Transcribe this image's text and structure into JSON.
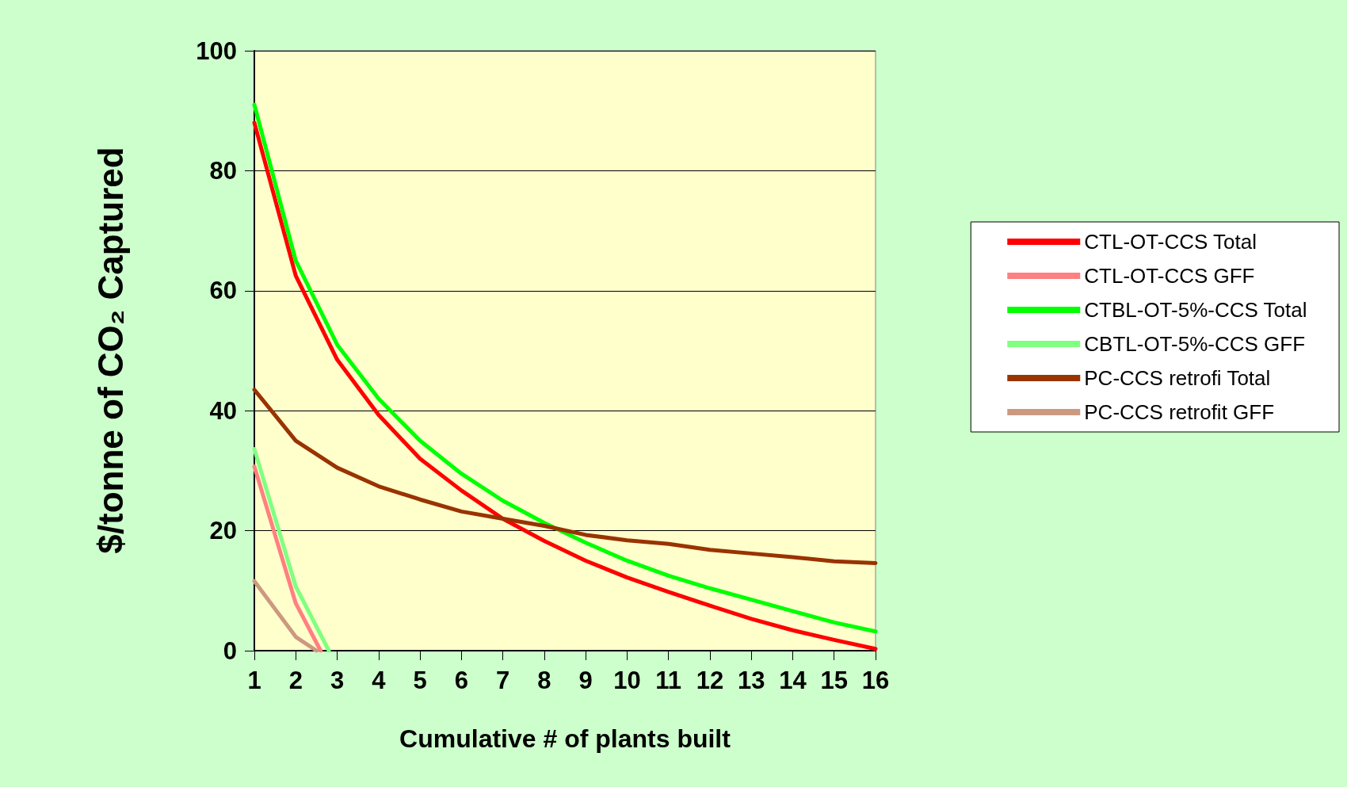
{
  "chart_data": {
    "type": "line",
    "xlabel": "Cumulative # of plants built",
    "ylabel": "$/tonne of CO₂ Captured",
    "xlim": [
      1,
      16
    ],
    "xticks": [
      1,
      2,
      3,
      4,
      5,
      6,
      7,
      8,
      9,
      10,
      11,
      12,
      13,
      14,
      15,
      16
    ],
    "ylim": [
      0,
      100
    ],
    "yticks": [
      0,
      20,
      40,
      60,
      80,
      100
    ],
    "grid": "y",
    "legend": "right",
    "marker": "none",
    "line_style": "solid",
    "series": [
      {
        "name": "CTL-OT-CCS Total",
        "color": "#ff0000",
        "x": [
          1,
          2,
          3,
          4,
          5,
          6,
          7,
          8,
          9,
          10,
          11,
          12,
          13,
          14,
          15,
          16
        ],
        "values": [
          88,
          62.5,
          48.5,
          39.3,
          32,
          26.7,
          22,
          18.3,
          15,
          12.2,
          9.8,
          7.5,
          5.3,
          3.4,
          1.8,
          0.3
        ]
      },
      {
        "name": "CTL-OT-CCS GFF",
        "color": "#ff8080",
        "x": [
          1,
          2,
          2.6
        ],
        "values": [
          30.7,
          7.9,
          0
        ]
      },
      {
        "name": "CTBL-OT-5%-CCS Total",
        "color": "#00ff00",
        "x": [
          1,
          2,
          3,
          4,
          5,
          6,
          7,
          8,
          9,
          10,
          11,
          12,
          13,
          14,
          15,
          16
        ],
        "values": [
          91,
          65,
          51,
          42,
          35,
          29.5,
          25,
          21.3,
          18,
          15,
          12.5,
          10.4,
          8.5,
          6.6,
          4.7,
          3.2
        ]
      },
      {
        "name": "CBTL-OT-5%-CCS GFF",
        "color": "#80ff80",
        "x": [
          1,
          2,
          2.8
        ],
        "values": [
          33.6,
          10.7,
          0
        ]
      },
      {
        "name": "PC-CCS retrofi Total",
        "color": "#993300",
        "x": [
          1,
          2,
          3,
          4,
          5,
          6,
          7,
          8,
          9,
          10,
          11,
          12,
          13,
          14,
          15,
          16
        ],
        "values": [
          43.5,
          35,
          30.5,
          27.4,
          25.2,
          23.2,
          22,
          20.8,
          19.3,
          18.4,
          17.8,
          16.8,
          16.2,
          15.6,
          14.9,
          14.6
        ]
      },
      {
        "name": "PC-CCS retrofit GFF",
        "color": "#cc9980",
        "x": [
          1,
          2,
          2.5
        ],
        "values": [
          11.6,
          2.3,
          0
        ]
      }
    ]
  }
}
